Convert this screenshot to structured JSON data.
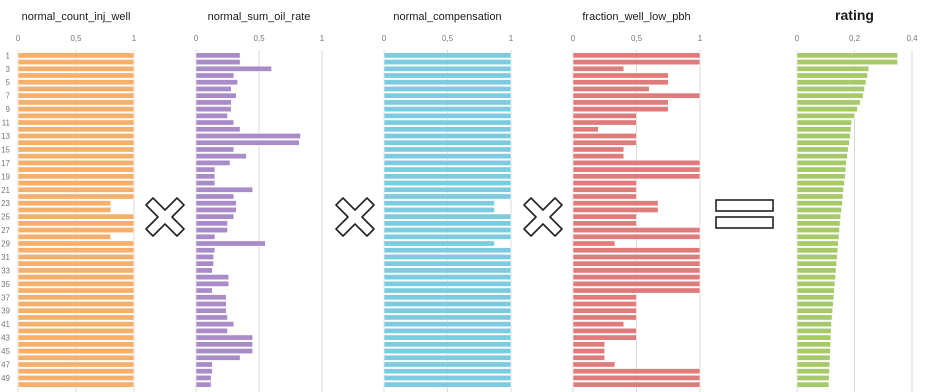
{
  "chart_data": [
    {
      "type": "bar",
      "orientation": "horizontal",
      "title": "normal_count_inj_well",
      "color": "#f6b06c",
      "xlim": [
        0,
        1
      ],
      "ticks": [
        {
          "value": 0,
          "label": "0"
        },
        {
          "value": 0.5,
          "label": "0,5"
        },
        {
          "value": 1,
          "label": "1"
        }
      ],
      "values": [
        1,
        1,
        1,
        1,
        1,
        1,
        1,
        1,
        1,
        1,
        1,
        1,
        1,
        1,
        1,
        1,
        1,
        1,
        1,
        1,
        1,
        1,
        0.8,
        0.8,
        1,
        1,
        1,
        0.8,
        1,
        1,
        1,
        1,
        1,
        1,
        1,
        1,
        1,
        1,
        1,
        1,
        1,
        1,
        1,
        1,
        1,
        1,
        1,
        1,
        1,
        1
      ]
    },
    {
      "type": "bar",
      "orientation": "horizontal",
      "title": "normal_sum_oil_rate",
      "color": "#a98bc9",
      "xlim": [
        0,
        1
      ],
      "ticks": [
        {
          "value": 0,
          "label": "0"
        },
        {
          "value": 0.5,
          "label": "0,5"
        },
        {
          "value": 1,
          "label": "1"
        }
      ],
      "values": [
        0.35,
        0.35,
        0.6,
        0.3,
        0.33,
        0.28,
        0.32,
        0.28,
        0.28,
        0.25,
        0.3,
        0.35,
        0.83,
        0.82,
        0.3,
        0.4,
        0.27,
        0.15,
        0.15,
        0.15,
        0.45,
        0.3,
        0.32,
        0.32,
        0.3,
        0.25,
        0.25,
        0.15,
        0.55,
        0.15,
        0.14,
        0.14,
        0.13,
        0.26,
        0.26,
        0.13,
        0.24,
        0.24,
        0.24,
        0.25,
        0.3,
        0.25,
        0.45,
        0.45,
        0.45,
        0.35,
        0.13,
        0.13,
        0.12,
        0.12
      ]
    },
    {
      "type": "bar",
      "orientation": "horizontal",
      "title": "normal_compensation",
      "color": "#7ccbe0",
      "xlim": [
        0,
        1
      ],
      "ticks": [
        {
          "value": 0,
          "label": "0"
        },
        {
          "value": 0.5,
          "label": "0,5"
        },
        {
          "value": 1,
          "label": "1"
        }
      ],
      "values": [
        1,
        1,
        1,
        1,
        1,
        1,
        1,
        1,
        1,
        1,
        1,
        1,
        1,
        1,
        1,
        1,
        1,
        1,
        1,
        1,
        1,
        1,
        0.87,
        0.87,
        1,
        1,
        1,
        1,
        0.87,
        1,
        1,
        1,
        1,
        1,
        1,
        1,
        1,
        1,
        1,
        1,
        1,
        1,
        1,
        1,
        1,
        1,
        1,
        1,
        1,
        1
      ]
    },
    {
      "type": "bar",
      "orientation": "horizontal",
      "title": "fraction_well_low_pbh",
      "color": "#e07b7b",
      "xlim": [
        0,
        1
      ],
      "ticks": [
        {
          "value": 0,
          "label": "0"
        },
        {
          "value": 0.5,
          "label": "0,5"
        },
        {
          "value": 1,
          "label": "1"
        }
      ],
      "values": [
        1,
        1,
        0.4,
        0.75,
        0.75,
        0.6,
        1,
        0.75,
        0.75,
        0.5,
        0.5,
        0.2,
        0.5,
        0.5,
        0.4,
        0.4,
        1,
        1,
        1,
        0.5,
        0.5,
        0.5,
        0.67,
        0.67,
        0.5,
        0.5,
        1,
        1,
        0.33,
        1,
        1,
        1,
        1,
        1,
        1,
        1,
        0.5,
        0.5,
        0.5,
        0.5,
        0.4,
        0.5,
        0.5,
        0.25,
        0.25,
        0.25,
        0.33,
        1,
        1,
        1
      ]
    },
    {
      "type": "bar",
      "orientation": "horizontal",
      "title": "rating",
      "color": "#a6c96a",
      "xlim": [
        0,
        0.4
      ],
      "ticks": [
        {
          "value": 0,
          "label": "0"
        },
        {
          "value": 0.2,
          "label": "0,2"
        },
        {
          "value": 0.4,
          "label": "0,4"
        }
      ],
      "values": [
        0.35,
        0.35,
        0.25,
        0.245,
        0.24,
        0.235,
        0.23,
        0.22,
        0.21,
        0.2,
        0.19,
        0.188,
        0.185,
        0.182,
        0.178,
        0.175,
        0.172,
        0.17,
        0.168,
        0.165,
        0.162,
        0.16,
        0.158,
        0.155,
        0.152,
        0.15,
        0.148,
        0.146,
        0.144,
        0.142,
        0.14,
        0.138,
        0.136,
        0.134,
        0.132,
        0.13,
        0.128,
        0.126,
        0.124,
        0.122,
        0.12,
        0.119,
        0.118,
        0.117,
        0.116,
        0.115,
        0.114,
        0.113,
        0.112,
        0.111
      ]
    }
  ],
  "row_labels": [
    "1",
    "3",
    "5",
    "7",
    "9",
    "11",
    "13",
    "15",
    "17",
    "19",
    "21",
    "23",
    "25",
    "27",
    "29",
    "31",
    "33",
    "35",
    "37",
    "39",
    "41",
    "43",
    "45",
    "47",
    "49"
  ],
  "operators": [
    {
      "symbol": "times",
      "icon": "multiply-icon"
    },
    {
      "symbol": "times",
      "icon": "multiply-icon"
    },
    {
      "symbol": "times",
      "icon": "multiply-icon"
    },
    {
      "symbol": "equals",
      "icon": "equals-icon"
    }
  ]
}
